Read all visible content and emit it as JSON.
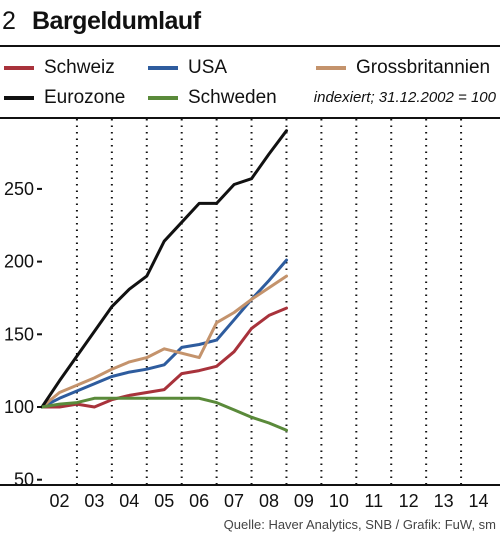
{
  "header": {
    "number": "2",
    "title": "Bargeldumlauf"
  },
  "note": "indexiert; 31.12.2002 = 100",
  "source": "Quelle: Haver Analytics, SNB / Grafik: FuW, sm",
  "chart_data": {
    "type": "line",
    "categories": [
      "02",
      "03",
      "04",
      "05",
      "06",
      "07",
      "08",
      "09",
      "10",
      "11",
      "12",
      "13",
      "14"
    ],
    "ylim": [
      50,
      290
    ],
    "yticks": [
      50,
      100,
      150,
      200,
      250
    ],
    "ytick_labels": [
      "50",
      "100",
      "150",
      "200",
      "250"
    ],
    "grid": "vertical dotted",
    "legend_position": "top",
    "series": [
      {
        "name": "Schweiz",
        "color": "#a8323b",
        "points": [
          [
            0,
            100
          ],
          [
            1,
            100
          ],
          [
            2,
            102
          ],
          [
            3,
            100
          ],
          [
            4,
            105
          ],
          [
            5,
            108
          ],
          [
            6,
            110
          ],
          [
            7,
            112
          ],
          [
            8,
            123
          ],
          [
            9,
            125
          ],
          [
            10,
            128
          ],
          [
            11,
            138
          ],
          [
            12,
            154
          ],
          [
            13,
            163
          ],
          [
            14,
            168
          ]
        ]
      },
      {
        "name": "USA",
        "color": "#2e5c9e",
        "points": [
          [
            0,
            100
          ],
          [
            1,
            106
          ],
          [
            2,
            111
          ],
          [
            3,
            116
          ],
          [
            4,
            121
          ],
          [
            5,
            124
          ],
          [
            6,
            126
          ],
          [
            7,
            129
          ],
          [
            8,
            141
          ],
          [
            9,
            143
          ],
          [
            10,
            146
          ],
          [
            11,
            160
          ],
          [
            12,
            174
          ],
          [
            13,
            187
          ],
          [
            14,
            201
          ]
        ]
      },
      {
        "name": "Grossbritannien",
        "color": "#c4936c",
        "points": [
          [
            0,
            100
          ],
          [
            1,
            110
          ],
          [
            2,
            115
          ],
          [
            3,
            120
          ],
          [
            4,
            126
          ],
          [
            5,
            131
          ],
          [
            6,
            134
          ],
          [
            7,
            140
          ],
          [
            8,
            137
          ],
          [
            9,
            134
          ],
          [
            10,
            158
          ],
          [
            11,
            165
          ],
          [
            12,
            174
          ],
          [
            13,
            182
          ],
          [
            14,
            190
          ]
        ]
      },
      {
        "name": "Eurozone",
        "color": "#111111",
        "points": [
          [
            0,
            100
          ],
          [
            1,
            118
          ],
          [
            2,
            135
          ],
          [
            3,
            152
          ],
          [
            4,
            169
          ],
          [
            5,
            181
          ],
          [
            6,
            190
          ],
          [
            7,
            214
          ],
          [
            8,
            227
          ],
          [
            9,
            240
          ],
          [
            10,
            240
          ],
          [
            11,
            253
          ],
          [
            12,
            257
          ],
          [
            13,
            274
          ],
          [
            14,
            290
          ]
        ]
      },
      {
        "name": "Schweden",
        "color": "#5a8a3a",
        "points": [
          [
            0,
            100
          ],
          [
            1,
            102
          ],
          [
            2,
            103
          ],
          [
            3,
            106
          ],
          [
            4,
            106
          ],
          [
            5,
            106
          ],
          [
            6,
            106
          ],
          [
            7,
            106
          ],
          [
            8,
            106
          ],
          [
            9,
            106
          ],
          [
            10,
            103
          ],
          [
            11,
            98
          ],
          [
            12,
            93
          ],
          [
            13,
            89
          ],
          [
            14,
            84
          ]
        ]
      }
    ]
  }
}
